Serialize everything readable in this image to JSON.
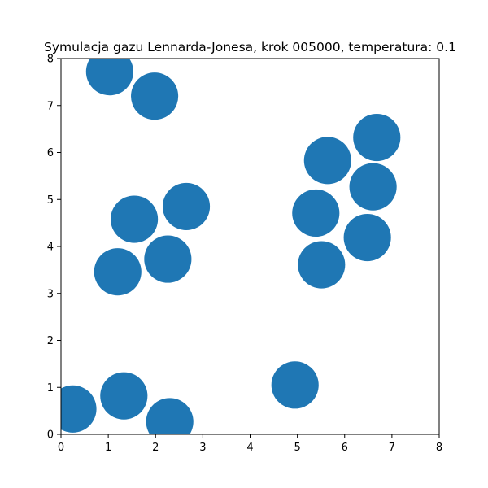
{
  "chart_data": {
    "type": "scatter",
    "title": "Symulacja gazu Lennarda-Jonesa, krok 005000, temperatura: 0.1",
    "xlabel": "",
    "ylabel": "",
    "xlim": [
      0,
      8
    ],
    "ylim": [
      0,
      8
    ],
    "xticks": [
      "0",
      "1",
      "2",
      "3",
      "4",
      "5",
      "6",
      "7",
      "8"
    ],
    "yticks": [
      "0",
      "1",
      "2",
      "3",
      "4",
      "5",
      "6",
      "7",
      "8"
    ],
    "grid": false,
    "marker_color": "#1f77b4",
    "particle_radius": 0.5,
    "series": [
      {
        "name": "particles",
        "points": [
          {
            "x": 1.03,
            "y": 7.72
          },
          {
            "x": 1.98,
            "y": 7.2
          },
          {
            "x": 6.68,
            "y": 6.32
          },
          {
            "x": 5.64,
            "y": 5.83
          },
          {
            "x": 6.6,
            "y": 5.27
          },
          {
            "x": 2.65,
            "y": 4.85
          },
          {
            "x": 1.55,
            "y": 4.58
          },
          {
            "x": 5.39,
            "y": 4.71
          },
          {
            "x": 6.48,
            "y": 4.19
          },
          {
            "x": 2.26,
            "y": 3.73
          },
          {
            "x": 1.2,
            "y": 3.46
          },
          {
            "x": 5.51,
            "y": 3.61
          },
          {
            "x": 4.95,
            "y": 1.05
          },
          {
            "x": 1.33,
            "y": 0.82
          },
          {
            "x": 0.25,
            "y": 0.54
          },
          {
            "x": 2.3,
            "y": 0.27
          }
        ]
      }
    ]
  }
}
